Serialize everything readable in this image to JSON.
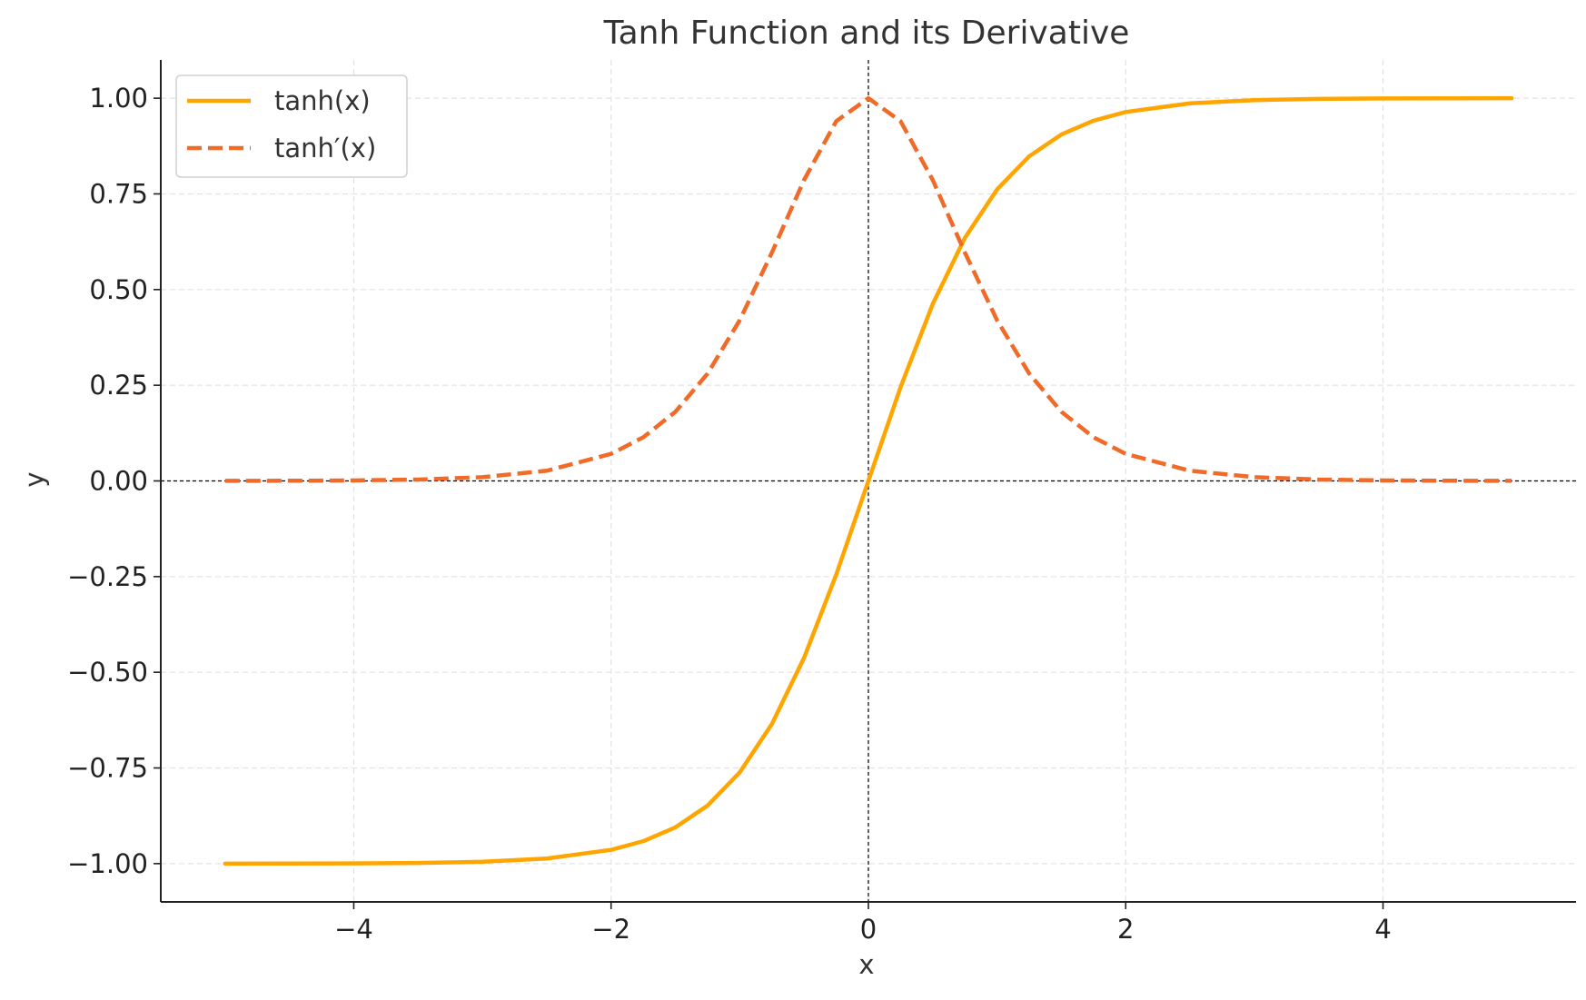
{
  "chart_data": {
    "type": "line",
    "title": "Tanh Function and its Derivative",
    "xlabel": "x",
    "ylabel": "y",
    "xlim": [
      -5.5,
      5.5
    ],
    "ylim": [
      -1.1,
      1.1
    ],
    "xticks": [
      -4,
      -2,
      0,
      2,
      4
    ],
    "xtick_labels": [
      "−4",
      "−2",
      "0",
      "2",
      "4"
    ],
    "yticks": [
      -1.0,
      -0.75,
      -0.5,
      -0.25,
      0.0,
      0.25,
      0.5,
      0.75,
      1.0
    ],
    "ytick_labels": [
      "−1.00",
      "−0.75",
      "−0.50",
      "−0.25",
      "0.00",
      "0.25",
      "0.50",
      "0.75",
      "1.00"
    ],
    "grid": true,
    "legend_position": "top-left",
    "reference_lines": {
      "x": 0,
      "y": 0,
      "color": "#000000",
      "style": "dashed"
    },
    "x": [
      -5.0,
      -4.5,
      -4.0,
      -3.5,
      -3.0,
      -2.5,
      -2.0,
      -1.75,
      -1.5,
      -1.25,
      -1.0,
      -0.75,
      -0.5,
      -0.25,
      0.0,
      0.25,
      0.5,
      0.75,
      1.0,
      1.25,
      1.5,
      1.75,
      2.0,
      2.5,
      3.0,
      3.5,
      4.0,
      4.5,
      5.0
    ],
    "series": [
      {
        "name": "tanh(x)",
        "style": "solid",
        "color": "#FFA500",
        "values": [
          -0.9999,
          -0.9998,
          -0.9993,
          -0.9982,
          -0.9951,
          -0.9866,
          -0.964,
          -0.9413,
          -0.9051,
          -0.8483,
          -0.7616,
          -0.6351,
          -0.4621,
          -0.2449,
          0.0,
          0.2449,
          0.4621,
          0.6351,
          0.7616,
          0.8483,
          0.9051,
          0.9413,
          0.964,
          0.9866,
          0.9951,
          0.9982,
          0.9993,
          0.9998,
          0.9999
        ]
      },
      {
        "name": "tanh′(x)",
        "style": "dashed",
        "color": "#F06A28",
        "values": [
          0.0002,
          0.0005,
          0.0013,
          0.0036,
          0.0099,
          0.0266,
          0.0707,
          0.114,
          0.1807,
          0.2804,
          0.42,
          0.5966,
          0.7864,
          0.94,
          1.0,
          0.94,
          0.7864,
          0.5966,
          0.42,
          0.2804,
          0.1807,
          0.114,
          0.0707,
          0.0266,
          0.0099,
          0.0036,
          0.0013,
          0.0005,
          0.0002
        ]
      }
    ]
  }
}
